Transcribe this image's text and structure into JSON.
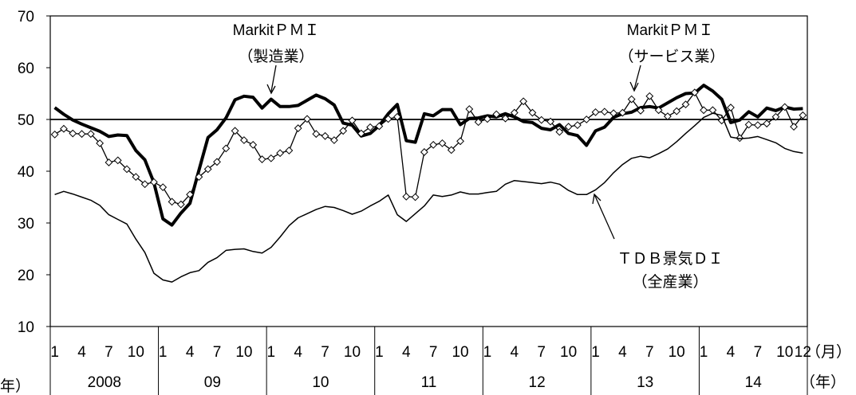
{
  "chart_data": {
    "type": "line",
    "title": "",
    "xlabel": "",
    "ylabel": "",
    "ylim": [
      10,
      70
    ],
    "yticks": [
      10,
      20,
      30,
      40,
      50,
      60,
      70
    ],
    "reference_line": 50,
    "grid": false,
    "x_unit_month": "（月）",
    "x_unit_year": "（年）",
    "x_unit_year_left": "年）",
    "month_ticks": [
      "1",
      "4",
      "7",
      "10",
      "1",
      "4",
      "7",
      "10",
      "1",
      "4",
      "7",
      "10",
      "1",
      "4",
      "7",
      "10",
      "1",
      "4",
      "7",
      "10",
      "1",
      "4",
      "7",
      "10",
      "1",
      "4",
      "7",
      "10",
      "12"
    ],
    "year_labels": [
      "2008",
      "09",
      "10",
      "11",
      "12",
      "13",
      "14"
    ],
    "annotations": {
      "pmi_manufacturing": [
        "MarkitＰＭＩ",
        "（製造業）"
      ],
      "pmi_services": [
        "MarkitＰＭＩ",
        "（サービス業）"
      ],
      "tdb": [
        "ＴＤＢ景気ＤＩ",
        "（全産業）"
      ]
    },
    "series": [
      {
        "key": "pmi_manufacturing",
        "style": "thick",
        "values": [
          52.3,
          51.0,
          49.9,
          49.1,
          48.4,
          47.7,
          46.7,
          47.0,
          46.9,
          44.0,
          42.2,
          37.8,
          30.8,
          29.6,
          31.9,
          33.8,
          40.2,
          46.5,
          48.0,
          50.3,
          53.8,
          54.5,
          54.3,
          52.2,
          53.9,
          52.5,
          52.5,
          52.7,
          53.7,
          54.7,
          54.0,
          52.8,
          49.3,
          48.9,
          46.8,
          47.3,
          48.8,
          51.1,
          52.9,
          45.9,
          45.6,
          51.1,
          50.7,
          51.9,
          51.9,
          49.0,
          50.2,
          50.3,
          50.7,
          50.5,
          51.1,
          50.5,
          49.6,
          49.4,
          48.3,
          48.0,
          49.0,
          47.3,
          46.9,
          45.0,
          47.8,
          48.5,
          50.4,
          51.1,
          51.4,
          52.3,
          52.5,
          52.2,
          53.2,
          54.2,
          55.0,
          55.1,
          56.6,
          55.5,
          53.9,
          49.4,
          49.9,
          51.5,
          50.5,
          52.2,
          51.7,
          52.4,
          52.0,
          52.1
        ]
      },
      {
        "key": "pmi_services",
        "style": "diamond",
        "values": [
          47.1,
          48.2,
          47.3,
          47.2,
          47.2,
          45.4,
          41.7,
          42.1,
          40.4,
          38.9,
          37.5,
          37.9,
          36.9,
          34.1,
          33.6,
          35.5,
          38.9,
          40.4,
          41.8,
          44.4,
          47.8,
          46.0,
          45.1,
          42.3,
          42.5,
          43.5,
          44.0,
          48.3,
          50.1,
          47.2,
          46.8,
          46.0,
          47.8,
          49.8,
          47.3,
          48.5,
          48.7,
          50.1,
          50.5,
          35.1,
          35.0,
          43.7,
          45.1,
          45.4,
          44.1,
          45.8,
          52.0,
          49.5,
          50.1,
          51.0,
          50.2,
          51.3,
          53.5,
          51.3,
          49.9,
          49.6,
          47.6,
          48.6,
          48.9,
          50.0,
          51.4,
          51.5,
          51.2,
          51.3,
          53.9,
          51.7,
          54.5,
          51.8,
          50.6,
          51.6,
          52.9,
          55.2,
          51.8,
          51.8,
          49.8,
          52.3,
          46.4,
          49.0,
          48.9,
          49.2,
          50.5,
          52.4,
          48.6,
          50.8
        ]
      },
      {
        "key": "tdb",
        "style": "thin",
        "values": [
          35.5,
          36.1,
          35.6,
          35.0,
          34.4,
          33.4,
          31.6,
          30.7,
          29.8,
          26.9,
          24.3,
          20.3,
          19.0,
          18.6,
          19.6,
          20.4,
          20.8,
          22.4,
          23.3,
          24.7,
          24.9,
          25.0,
          24.5,
          24.2,
          25.3,
          27.3,
          29.5,
          31.0,
          31.8,
          32.6,
          33.2,
          33.0,
          32.4,
          31.7,
          32.3,
          33.3,
          34.2,
          35.4,
          31.6,
          30.3,
          31.8,
          33.3,
          35.4,
          35.1,
          35.4,
          36.0,
          35.6,
          35.6,
          35.9,
          36.1,
          37.5,
          38.2,
          38.0,
          37.8,
          37.6,
          37.9,
          37.5,
          36.3,
          35.5,
          35.5,
          36.4,
          37.8,
          39.7,
          41.3,
          42.5,
          42.9,
          42.6,
          43.4,
          44.3,
          45.7,
          47.3,
          48.8,
          50.4,
          51.2,
          50.8,
          46.6,
          46.3,
          46.4,
          46.7,
          46.1,
          45.5,
          44.4,
          43.8,
          43.5
        ]
      }
    ]
  }
}
